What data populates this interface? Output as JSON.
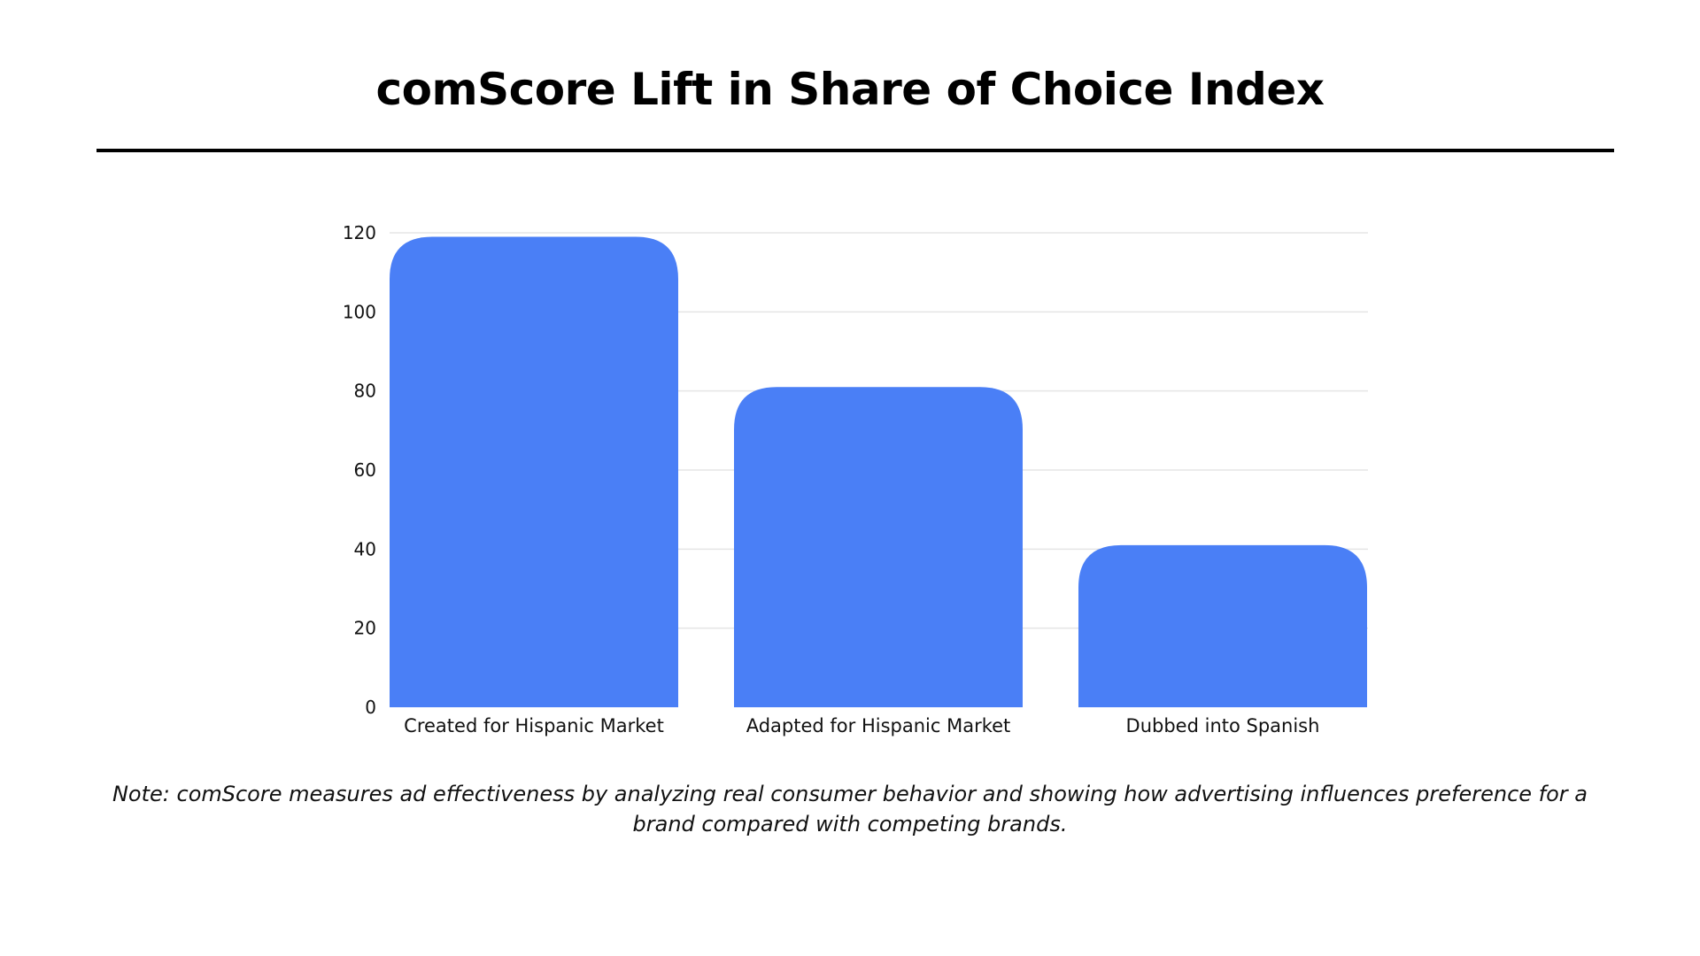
{
  "page": {
    "title": "comScore Lift in Share of Choice Index",
    "note": "Note: comScore measures ad effectiveness by analyzing real consumer behavior and showing how advertising influences preference for a brand compared with competing brands."
  },
  "chart_data": {
    "type": "bar",
    "title": "comScore Lift in Share of Choice Index",
    "xlabel": "",
    "ylabel": "",
    "categories": [
      "Created for Hispanic Market",
      "Adapted for Hispanic Market",
      "Dubbed into Spanish"
    ],
    "values": [
      119,
      81,
      41
    ],
    "ylim": [
      0,
      120
    ],
    "yticks": [
      0,
      20,
      40,
      60,
      80,
      100,
      120
    ],
    "grid": true,
    "bar_color": "#4a7ff6",
    "grid_color": "#e5e5e5"
  }
}
